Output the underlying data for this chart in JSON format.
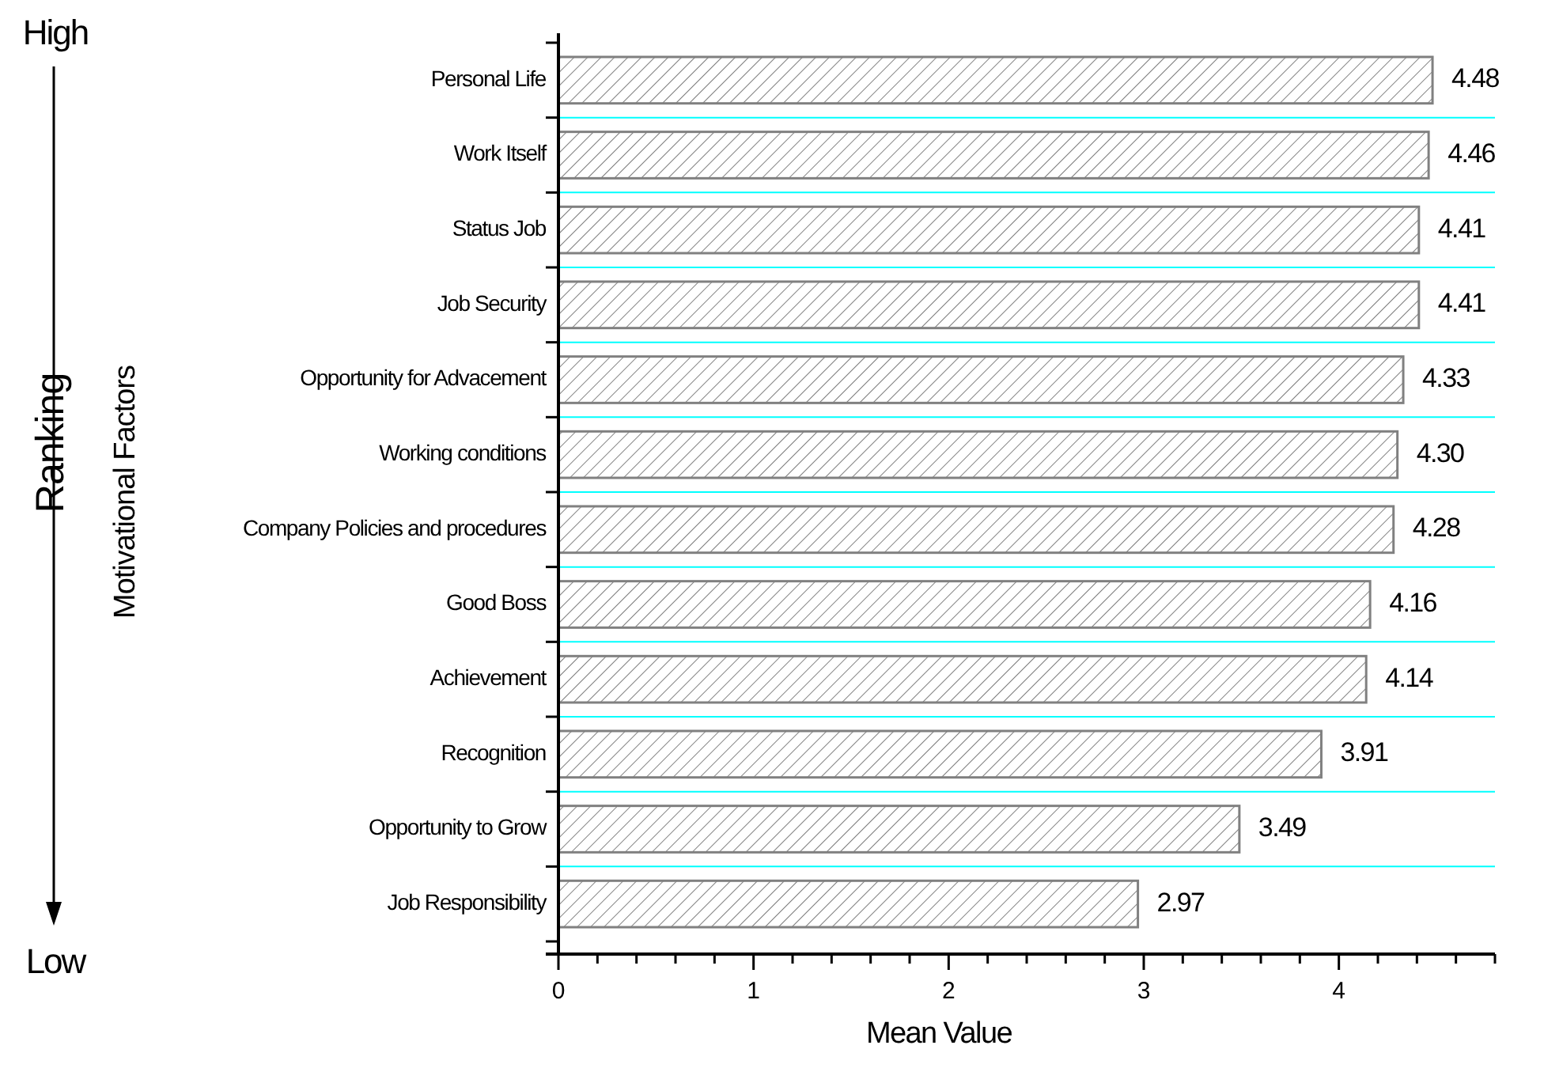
{
  "chart_data": {
    "type": "bar",
    "orientation": "horizontal",
    "xlabel": "Mean Value",
    "ylabel": "Motivational Factors",
    "categories": [
      "Personal Life",
      "Work Itself",
      "Status Job",
      "Job Security",
      "Opportunity for Advacement",
      "Working conditions",
      "Company Policies and procedures",
      "Good Boss",
      "Achievement",
      "Recognition",
      "Opportunity to Grow",
      "Job Responsibility"
    ],
    "values": [
      4.48,
      4.46,
      4.41,
      4.41,
      4.33,
      4.3,
      4.28,
      4.16,
      4.14,
      3.91,
      3.49,
      2.97
    ],
    "value_labels": [
      "4.48",
      "4.46",
      "4.41",
      "4.41",
      "4.33",
      "4.30",
      "4.28",
      "4.16",
      "4.14",
      "3.91",
      "3.49",
      "2.97"
    ],
    "color": "#808080",
    "grid": "y",
    "xlim": [
      0,
      4.8
    ],
    "xticks": [
      0,
      {
        "value": 0.2,
        "label": null
      },
      {
        "value": 0.4,
        "label": null
      },
      {
        "value": 0.6,
        "label": null
      },
      {
        "value": 0.8,
        "label": null
      },
      1,
      {
        "value": 1.2,
        "label": null
      },
      {
        "value": 1.4,
        "label": null
      },
      {
        "value": 1.6,
        "label": null
      },
      {
        "value": 1.8,
        "label": null
      },
      2,
      {
        "value": 2.2,
        "label": null
      },
      {
        "value": 2.4,
        "label": null
      },
      {
        "value": 2.6,
        "label": null
      },
      {
        "value": 2.8,
        "label": null
      },
      3,
      {
        "value": 3.2,
        "label": null
      },
      {
        "value": 3.4,
        "label": null
      },
      {
        "value": 3.6,
        "label": null
      },
      {
        "value": 3.8,
        "label": null
      },
      4,
      {
        "value": 4.2,
        "label": null
      },
      {
        "value": 4.4,
        "label": null
      },
      {
        "value": 4.6,
        "label": null
      },
      {
        "value": 4.8,
        "label": null
      }
    ],
    "annotations": [
      "High",
      "Ranking",
      "Low"
    ]
  }
}
